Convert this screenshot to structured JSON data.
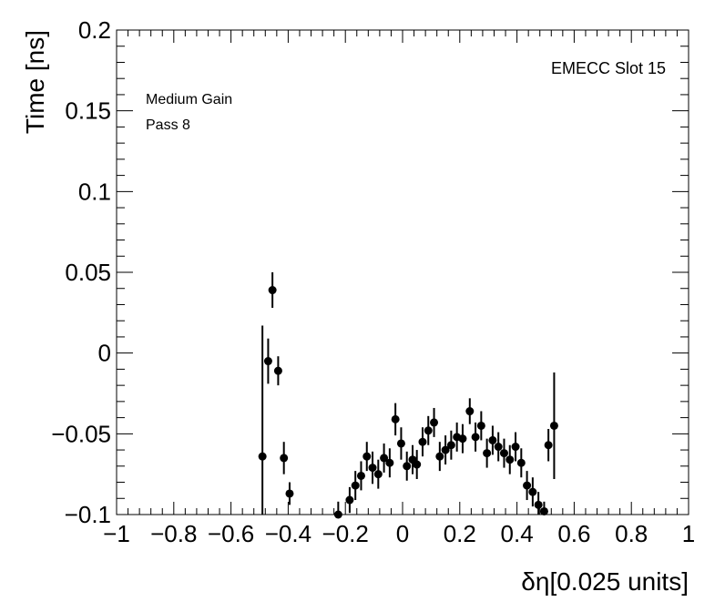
{
  "chart_data": {
    "type": "scatter",
    "xlabel": "δη[0.025 units]",
    "ylabel": "Time [ns]",
    "xlim": [
      -1,
      1
    ],
    "ylim": [
      -0.1,
      0.2
    ],
    "x_ticks": [
      -1,
      -0.8,
      -0.6,
      -0.4,
      -0.2,
      0,
      0.2,
      0.4,
      0.6,
      0.8,
      1
    ],
    "x_tick_labels": [
      "−1",
      "−0.8",
      "−0.6",
      "−0.4",
      "−0.2",
      "0",
      "0.2",
      "0.4",
      "0.6",
      "0.8",
      "1"
    ],
    "y_ticks": [
      -0.1,
      -0.05,
      0,
      0.05,
      0.1,
      0.15,
      0.2
    ],
    "y_tick_labels": [
      "−0.1",
      "−0.05",
      "0",
      "0.05",
      "0.1",
      "0.15",
      "0.2"
    ],
    "grid": false,
    "annotations": [
      "EMECC Slot 15",
      "Medium Gain",
      "Pass 8"
    ],
    "points": [
      {
        "x": -0.49,
        "y": -0.064,
        "err": 0.081
      },
      {
        "x": -0.47,
        "y": -0.005,
        "err": 0.014
      },
      {
        "x": -0.455,
        "y": 0.039,
        "err": 0.011
      },
      {
        "x": -0.435,
        "y": -0.011,
        "err": 0.009
      },
      {
        "x": -0.415,
        "y": -0.065,
        "err": 0.01
      },
      {
        "x": -0.395,
        "y": -0.087,
        "err": 0.007
      },
      {
        "x": -0.225,
        "y": -0.1,
        "err": 0.008
      },
      {
        "x": -0.185,
        "y": -0.091,
        "err": 0.008
      },
      {
        "x": -0.165,
        "y": -0.082,
        "err": 0.009
      },
      {
        "x": -0.145,
        "y": -0.076,
        "err": 0.009
      },
      {
        "x": -0.125,
        "y": -0.064,
        "err": 0.009
      },
      {
        "x": -0.105,
        "y": -0.071,
        "err": 0.01
      },
      {
        "x": -0.085,
        "y": -0.075,
        "err": 0.009
      },
      {
        "x": -0.065,
        "y": -0.065,
        "err": 0.009
      },
      {
        "x": -0.045,
        "y": -0.068,
        "err": 0.009
      },
      {
        "x": -0.025,
        "y": -0.041,
        "err": 0.01
      },
      {
        "x": -0.005,
        "y": -0.056,
        "err": 0.01
      },
      {
        "x": 0.015,
        "y": -0.07,
        "err": 0.009
      },
      {
        "x": 0.035,
        "y": -0.066,
        "err": 0.009
      },
      {
        "x": 0.05,
        "y": -0.069,
        "err": 0.009
      },
      {
        "x": 0.07,
        "y": -0.055,
        "err": 0.009
      },
      {
        "x": 0.09,
        "y": -0.048,
        "err": 0.009
      },
      {
        "x": 0.11,
        "y": -0.043,
        "err": 0.009
      },
      {
        "x": 0.13,
        "y": -0.064,
        "err": 0.009
      },
      {
        "x": 0.15,
        "y": -0.06,
        "err": 0.009
      },
      {
        "x": 0.17,
        "y": -0.057,
        "err": 0.009
      },
      {
        "x": 0.19,
        "y": -0.052,
        "err": 0.009
      },
      {
        "x": 0.21,
        "y": -0.053,
        "err": 0.009
      },
      {
        "x": 0.235,
        "y": -0.036,
        "err": 0.008
      },
      {
        "x": 0.255,
        "y": -0.052,
        "err": 0.009
      },
      {
        "x": 0.275,
        "y": -0.045,
        "err": 0.009
      },
      {
        "x": 0.295,
        "y": -0.062,
        "err": 0.009
      },
      {
        "x": 0.315,
        "y": -0.054,
        "err": 0.009
      },
      {
        "x": 0.335,
        "y": -0.058,
        "err": 0.009
      },
      {
        "x": 0.355,
        "y": -0.062,
        "err": 0.009
      },
      {
        "x": 0.375,
        "y": -0.066,
        "err": 0.009
      },
      {
        "x": 0.395,
        "y": -0.058,
        "err": 0.009
      },
      {
        "x": 0.415,
        "y": -0.068,
        "err": 0.009
      },
      {
        "x": 0.435,
        "y": -0.082,
        "err": 0.009
      },
      {
        "x": 0.455,
        "y": -0.086,
        "err": 0.009
      },
      {
        "x": 0.475,
        "y": -0.094,
        "err": 0.008
      },
      {
        "x": 0.495,
        "y": -0.098,
        "err": 0.006
      },
      {
        "x": 0.51,
        "y": -0.057,
        "err": 0.01
      },
      {
        "x": 0.53,
        "y": -0.045,
        "err": 0.033
      }
    ]
  }
}
